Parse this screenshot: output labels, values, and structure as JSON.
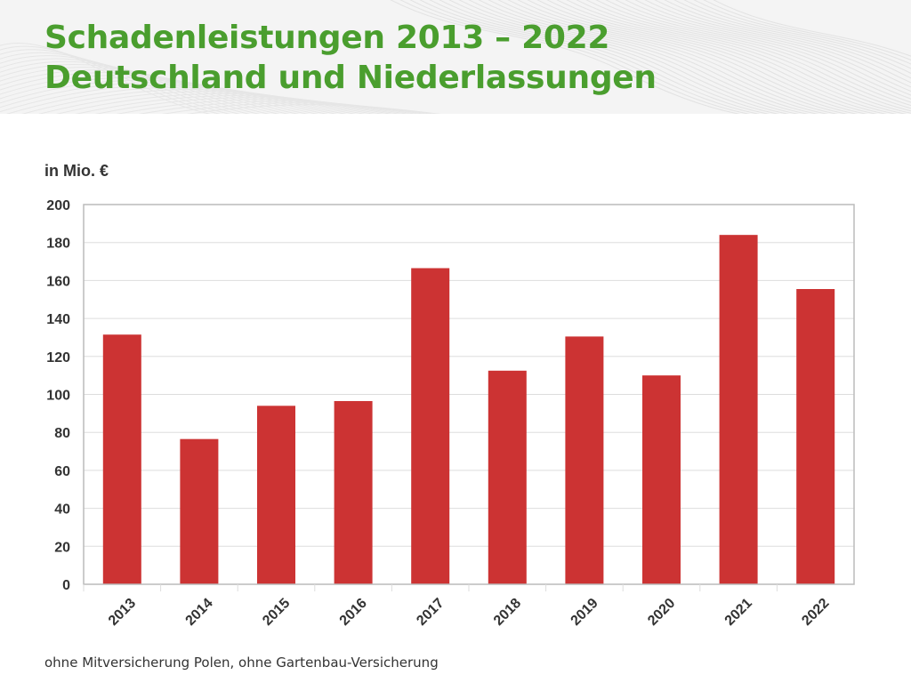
{
  "title": {
    "line1": "Schadenleistungen 2013 – 2022",
    "line2": "Deutschland und Niederlassungen"
  },
  "unit_label": "in Mio. €",
  "footnote": "ohne Mitversicherung Polen, ohne Gartenbau-Versicherung",
  "colors": {
    "title": "#4a9e2e",
    "bar": "#cc3333",
    "grid": "#dddddd",
    "axis": "#bbbbbb",
    "text": "#333333",
    "header_background": "#f4f4f4"
  },
  "chart_data": {
    "type": "bar",
    "categories": [
      "2013",
      "2014",
      "2015",
      "2016",
      "2017",
      "2018",
      "2019",
      "2020",
      "2021",
      "2022"
    ],
    "series": [
      {
        "values": [
          131.5,
          76.5,
          94,
          96.5,
          166.5,
          112.5,
          130.5,
          110,
          184,
          155.5
        ]
      }
    ],
    "ylabel": "in Mio. €",
    "xlabel": "",
    "ylim": [
      0,
      200
    ],
    "yticks": [
      0,
      20,
      40,
      60,
      80,
      100,
      120,
      140,
      160,
      180,
      200
    ],
    "grid": true,
    "legend": "none",
    "x_tick_rotation": "-45deg"
  }
}
